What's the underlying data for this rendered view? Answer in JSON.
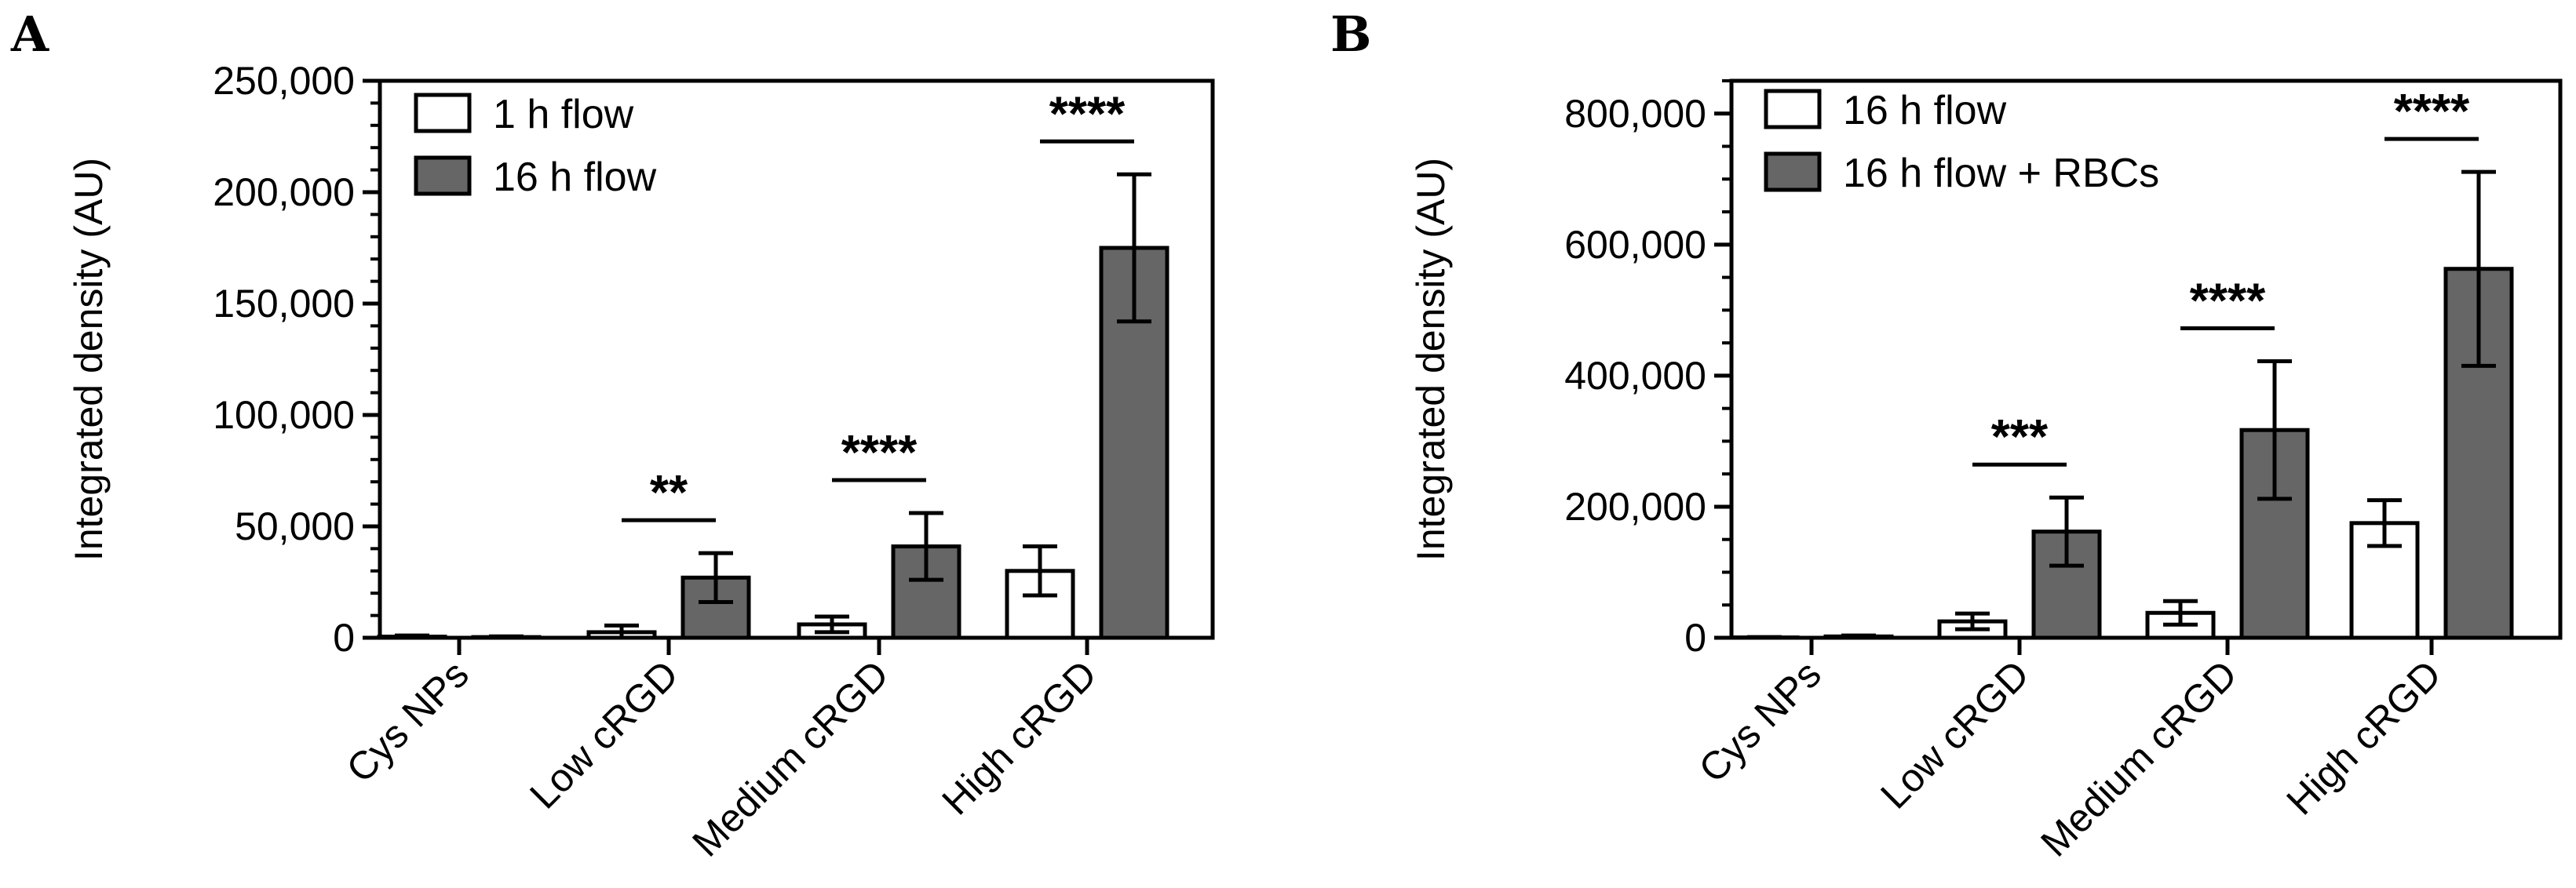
{
  "chart_data": [
    {
      "panel": "A",
      "type": "bar",
      "ylabel": "Integrated density (AU)",
      "ylim": [
        0,
        250000
      ],
      "yticks": [
        "0",
        "50,000",
        "100,000",
        "150,000",
        "200,000",
        "250,000"
      ],
      "categories": [
        "Cys NPs",
        "Low cRGD",
        "Medium cRGD",
        "High cRGD"
      ],
      "series": [
        {
          "name": "1 h flow",
          "fill": "#ffffff",
          "values": [
            500,
            2500,
            6000,
            30000
          ],
          "errors": [
            500,
            3000,
            3500,
            11000
          ]
        },
        {
          "name": "16 h flow",
          "fill": "#666666",
          "values": [
            300,
            27000,
            41000,
            175000
          ],
          "errors": [
            300,
            11000,
            15000,
            33000
          ]
        }
      ],
      "significance": [
        "",
        "**",
        "****",
        "****"
      ],
      "legend_position": "top-left"
    },
    {
      "panel": "B",
      "type": "bar",
      "ylabel": "Integrated density (AU)",
      "ylim": [
        0,
        850000
      ],
      "yticks": [
        "0",
        "200,000",
        "400,000",
        "600,000",
        "800,000"
      ],
      "categories": [
        "Cys NPs",
        "Low cRGD",
        "Medium cRGD",
        "High cRGD"
      ],
      "series": [
        {
          "name": "16 h flow",
          "fill": "#ffffff",
          "values": [
            500,
            25000,
            38000,
            175000
          ],
          "errors": [
            500,
            12000,
            18000,
            35000
          ]
        },
        {
          "name": "16 h flow + RBCs",
          "fill": "#666666",
          "values": [
            2000,
            162000,
            317000,
            563000
          ],
          "errors": [
            1500,
            52000,
            105000,
            148000
          ]
        }
      ],
      "significance": [
        "",
        "***",
        "****",
        "****"
      ],
      "legend_position": "top-left"
    }
  ]
}
